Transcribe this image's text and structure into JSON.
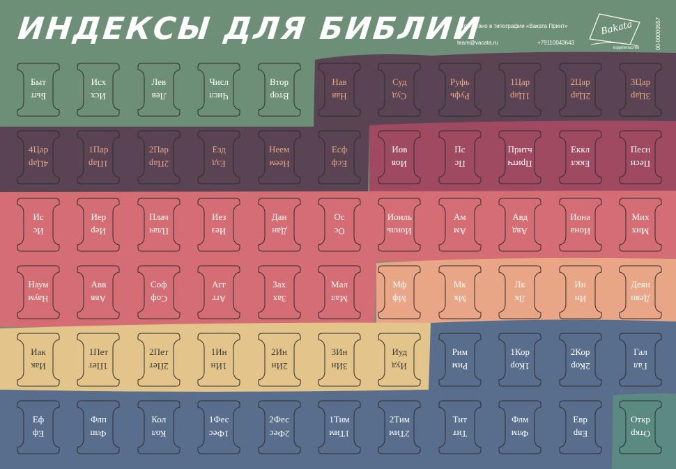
{
  "header": {
    "title": "ИНДЕКСЫ ДЛЯ БИБЛИИ",
    "printed": "Отпечатано в типографии «Ваката Принт»",
    "email": "team@vacata.ru",
    "phone": "+79110043643",
    "logo_word": "Bakata",
    "logo_sub": "издательство",
    "code": "00-00000557"
  },
  "colors": {
    "sage": "#6e8f77",
    "plum": "#5a4352",
    "magenta": "#a04a62",
    "coral": "#d56e74",
    "peach": "#e8a686",
    "sand": "#e3c58c",
    "slate": "#596e8c",
    "teal": "#5a8a82"
  },
  "rows": [
    {
      "tabs": [
        {
          "label": "Быт",
          "bg": "sage",
          "text": "#ffffff"
        },
        {
          "label": "Исх",
          "bg": "sage",
          "text": "#ffffff"
        },
        {
          "label": "Лев",
          "bg": "sage",
          "text": "#ffffff"
        },
        {
          "label": "Числ",
          "bg": "sage",
          "text": "#ffffff"
        },
        {
          "label": "Втор",
          "bg": "sage",
          "text": "#ffffff"
        },
        {
          "label": "Нав",
          "bg": "plum",
          "text": "#e8a686"
        },
        {
          "label": "Суд",
          "bg": "plum",
          "text": "#e8a686"
        },
        {
          "label": "Руфь",
          "bg": "plum",
          "text": "#e8a686"
        },
        {
          "label": "1Цар",
          "bg": "plum",
          "text": "#e8a686"
        },
        {
          "label": "2Цар",
          "bg": "plum",
          "text": "#e8a686"
        },
        {
          "label": "3Цар",
          "bg": "plum",
          "text": "#e8a686"
        }
      ]
    },
    {
      "tabs": [
        {
          "label": "4Цар",
          "bg": "plum",
          "text": "#e8a686"
        },
        {
          "label": "1Пар",
          "bg": "plum",
          "text": "#e8a686"
        },
        {
          "label": "2Пар",
          "bg": "plum",
          "text": "#e8a686"
        },
        {
          "label": "Езд",
          "bg": "plum",
          "text": "#e8a686"
        },
        {
          "label": "Неем",
          "bg": "plum",
          "text": "#e8a686"
        },
        {
          "label": "Есф",
          "bg": "plum",
          "text": "#e8a686"
        },
        {
          "label": "Иов",
          "bg": "magenta",
          "text": "#ffffff"
        },
        {
          "label": "Пс",
          "bg": "magenta",
          "text": "#ffffff"
        },
        {
          "label": "Притч",
          "bg": "magenta",
          "text": "#ffffff"
        },
        {
          "label": "Еккл",
          "bg": "magenta",
          "text": "#ffffff"
        },
        {
          "label": "Песн",
          "bg": "magenta",
          "text": "#ffffff"
        }
      ]
    },
    {
      "tabs": [
        {
          "label": "Ис",
          "bg": "coral",
          "text": "#ffffff"
        },
        {
          "label": "Иер",
          "bg": "coral",
          "text": "#ffffff"
        },
        {
          "label": "Плач",
          "bg": "coral",
          "text": "#ffffff"
        },
        {
          "label": "Иез",
          "bg": "coral",
          "text": "#ffffff"
        },
        {
          "label": "Дан",
          "bg": "coral",
          "text": "#ffffff"
        },
        {
          "label": "Ос",
          "bg": "coral",
          "text": "#ffffff"
        },
        {
          "label": "Иоиль",
          "bg": "coral",
          "text": "#ffffff"
        },
        {
          "label": "Ам",
          "bg": "coral",
          "text": "#ffffff"
        },
        {
          "label": "Авд",
          "bg": "coral",
          "text": "#ffffff"
        },
        {
          "label": "Иона",
          "bg": "coral",
          "text": "#ffffff"
        },
        {
          "label": "Мих",
          "bg": "coral",
          "text": "#ffffff"
        }
      ]
    },
    {
      "tabs": [
        {
          "label": "Наум",
          "bg": "coral",
          "text": "#ffffff"
        },
        {
          "label": "Авв",
          "bg": "coral",
          "text": "#ffffff"
        },
        {
          "label": "Соф",
          "bg": "coral",
          "text": "#ffffff"
        },
        {
          "label": "Агг",
          "bg": "coral",
          "text": "#ffffff"
        },
        {
          "label": "Зах",
          "bg": "coral",
          "text": "#ffffff"
        },
        {
          "label": "Мал",
          "bg": "coral",
          "text": "#ffffff"
        },
        {
          "label": "Мф",
          "bg": "peach",
          "text": "#ffffff"
        },
        {
          "label": "Мк",
          "bg": "peach",
          "text": "#ffffff"
        },
        {
          "label": "Лк",
          "bg": "peach",
          "text": "#ffffff"
        },
        {
          "label": "Ин",
          "bg": "peach",
          "text": "#ffffff"
        },
        {
          "label": "Деян",
          "bg": "peach",
          "text": "#ffffff"
        }
      ]
    },
    {
      "tabs": [
        {
          "label": "Иак",
          "bg": "sand",
          "text": "#3a3a3a"
        },
        {
          "label": "1Пет",
          "bg": "sand",
          "text": "#3a3a3a"
        },
        {
          "label": "2Пет",
          "bg": "sand",
          "text": "#3a3a3a"
        },
        {
          "label": "1Ин",
          "bg": "sand",
          "text": "#3a3a3a"
        },
        {
          "label": "2Ин",
          "bg": "sand",
          "text": "#3a3a3a"
        },
        {
          "label": "3Ин",
          "bg": "sand",
          "text": "#3a3a3a"
        },
        {
          "label": "Иуд",
          "bg": "sand",
          "text": "#3a3a3a"
        },
        {
          "label": "Рим",
          "bg": "slate",
          "text": "#ffffff"
        },
        {
          "label": "1Кор",
          "bg": "slate",
          "text": "#ffffff"
        },
        {
          "label": "2Кор",
          "bg": "slate",
          "text": "#ffffff"
        },
        {
          "label": "Гал",
          "bg": "slate",
          "text": "#ffffff"
        }
      ]
    },
    {
      "tabs": [
        {
          "label": "Еф",
          "bg": "slate",
          "text": "#ffffff"
        },
        {
          "label": "Флп",
          "bg": "slate",
          "text": "#ffffff"
        },
        {
          "label": "Кол",
          "bg": "slate",
          "text": "#ffffff"
        },
        {
          "label": "1Фес",
          "bg": "slate",
          "text": "#ffffff"
        },
        {
          "label": "2Фес",
          "bg": "slate",
          "text": "#ffffff"
        },
        {
          "label": "1Тим",
          "bg": "slate",
          "text": "#ffffff"
        },
        {
          "label": "2Тим",
          "bg": "slate",
          "text": "#ffffff"
        },
        {
          "label": "Тит",
          "bg": "slate",
          "text": "#ffffff"
        },
        {
          "label": "Флм",
          "bg": "slate",
          "text": "#ffffff"
        },
        {
          "label": "Евр",
          "bg": "slate",
          "text": "#ffffff"
        },
        {
          "label": "Откр",
          "bg": "teal",
          "text": "#ffffff"
        }
      ]
    }
  ]
}
